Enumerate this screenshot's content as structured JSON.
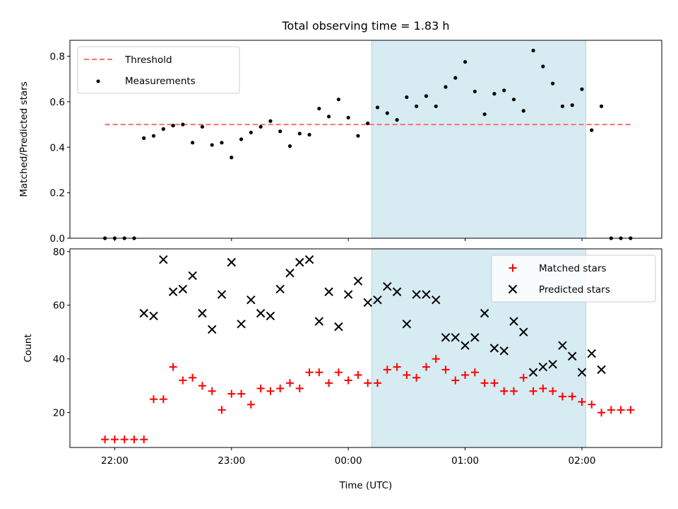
{
  "chart_data": [
    {
      "type": "scatter",
      "panel": "top",
      "title": "Total observing time = 1.83 h",
      "ylabel": "Matched/Predicted stars",
      "xlabel": "",
      "ylim": [
        0,
        0.87
      ],
      "yticks": [
        0.0,
        0.2,
        0.4,
        0.6,
        0.8
      ],
      "ytick_labels": [
        "0.0",
        "0.2",
        "0.4",
        "0.6",
        "0.8"
      ],
      "shaded_interval": [
        "00:12",
        "02:02"
      ],
      "shade_color": "#add8e6",
      "legend_position": "upper left",
      "threshold": {
        "name": "Threshold",
        "value": 0.5,
        "x_range": [
          "21:55",
          "02:25"
        ],
        "color": "#ff7070"
      },
      "series": [
        {
          "name": "Measurements",
          "color": "#000000",
          "x": [
            "21:55",
            "22:00",
            "22:05",
            "22:10",
            "22:15",
            "22:20",
            "22:25",
            "22:30",
            "22:35",
            "22:40",
            "22:45",
            "22:50",
            "22:55",
            "23:00",
            "23:05",
            "23:10",
            "23:15",
            "23:20",
            "23:25",
            "23:30",
            "23:35",
            "23:40",
            "23:45",
            "23:50",
            "23:55",
            "00:00",
            "00:05",
            "00:10",
            "00:15",
            "00:20",
            "00:25",
            "00:30",
            "00:35",
            "00:40",
            "00:45",
            "00:50",
            "00:55",
            "01:00",
            "01:05",
            "01:10",
            "01:15",
            "01:20",
            "01:25",
            "01:30",
            "01:35",
            "01:40",
            "01:45",
            "01:50",
            "01:55",
            "02:00",
            "02:05",
            "02:10",
            "02:15",
            "02:20",
            "02:25"
          ],
          "y": [
            0.0,
            0.0,
            0.0,
            0.0,
            0.44,
            0.45,
            0.48,
            0.495,
            0.5,
            0.42,
            0.49,
            0.41,
            0.42,
            0.355,
            0.435,
            0.465,
            0.49,
            0.515,
            0.47,
            0.405,
            0.46,
            0.455,
            0.57,
            0.535,
            0.61,
            0.53,
            0.45,
            0.505,
            0.575,
            0.55,
            0.52,
            0.62,
            0.58,
            0.625,
            0.58,
            0.665,
            0.705,
            0.775,
            0.645,
            0.545,
            0.635,
            0.65,
            0.61,
            0.56,
            0.825,
            0.755,
            0.68,
            0.58,
            0.585,
            0.655,
            0.475,
            0.58,
            0.0,
            0.0,
            0.0
          ]
        }
      ]
    },
    {
      "type": "scatter",
      "panel": "bottom",
      "title": "",
      "ylabel": "Count",
      "xlabel": "Time (UTC)",
      "ylim": [
        7,
        81
      ],
      "yticks": [
        20,
        40,
        60,
        80
      ],
      "ytick_labels": [
        "20",
        "40",
        "60",
        "80"
      ],
      "xlim": [
        "21:37",
        "02:41"
      ],
      "xticks": [
        "22:00",
        "23:00",
        "00:00",
        "01:00",
        "02:00"
      ],
      "xtick_labels": [
        "22:00",
        "23:00",
        "00:00",
        "01:00",
        "02:00"
      ],
      "shaded_interval": [
        "00:12",
        "02:02"
      ],
      "shade_color": "#add8e6",
      "legend_position": "upper right",
      "series": [
        {
          "name": "Matched stars",
          "marker": "plus",
          "color": "#ff0000",
          "x": [
            "21:55",
            "22:00",
            "22:05",
            "22:10",
            "22:15",
            "22:20",
            "22:25",
            "22:30",
            "22:35",
            "22:40",
            "22:45",
            "22:50",
            "22:55",
            "23:00",
            "23:05",
            "23:10",
            "23:15",
            "23:20",
            "23:25",
            "23:30",
            "23:35",
            "23:40",
            "23:45",
            "23:50",
            "23:55",
            "00:00",
            "00:05",
            "00:10",
            "00:15",
            "00:20",
            "00:25",
            "00:30",
            "00:35",
            "00:40",
            "00:45",
            "00:50",
            "00:55",
            "01:00",
            "01:05",
            "01:10",
            "01:15",
            "01:20",
            "01:25",
            "01:30",
            "01:35",
            "01:40",
            "01:45",
            "01:50",
            "01:55",
            "02:00",
            "02:05",
            "02:10",
            "02:15",
            "02:20",
            "02:25"
          ],
          "y": [
            10,
            10,
            10,
            10,
            10,
            25,
            25,
            37,
            32,
            33,
            30,
            28,
            21,
            27,
            27,
            23,
            29,
            28,
            29,
            31,
            29,
            35,
            35,
            31,
            35,
            32,
            34,
            31,
            31,
            36,
            37,
            34,
            33,
            37,
            40,
            36,
            32,
            34,
            35,
            31,
            31,
            28,
            28,
            33,
            28,
            29,
            28,
            26,
            26,
            24,
            23,
            20,
            21,
            21,
            21
          ]
        },
        {
          "name": "Predicted stars",
          "marker": "x",
          "color": "#000000",
          "x": [
            "22:15",
            "22:20",
            "22:25",
            "22:30",
            "22:35",
            "22:40",
            "22:45",
            "22:50",
            "22:55",
            "23:00",
            "23:05",
            "23:10",
            "23:15",
            "23:20",
            "23:25",
            "23:30",
            "23:35",
            "23:40",
            "23:45",
            "23:50",
            "23:55",
            "00:00",
            "00:05",
            "00:10",
            "00:15",
            "00:20",
            "00:25",
            "00:30",
            "00:35",
            "00:40",
            "00:45",
            "00:50",
            "00:55",
            "01:00",
            "01:05",
            "01:10",
            "01:15",
            "01:20",
            "01:25",
            "01:30",
            "01:35",
            "01:40",
            "01:45",
            "01:50",
            "01:55",
            "02:00",
            "02:05",
            "02:10"
          ],
          "y": [
            57,
            56,
            77,
            65,
            66,
            71,
            57,
            51,
            64,
            76,
            53,
            62,
            57,
            56,
            66,
            72,
            76,
            77,
            54,
            65,
            52,
            64,
            69,
            61,
            62,
            67,
            65,
            53,
            64,
            64,
            62,
            48,
            48,
            45,
            48,
            57,
            44,
            43,
            54,
            50,
            35,
            37,
            38,
            45,
            41,
            35,
            42,
            36
          ]
        }
      ]
    }
  ]
}
